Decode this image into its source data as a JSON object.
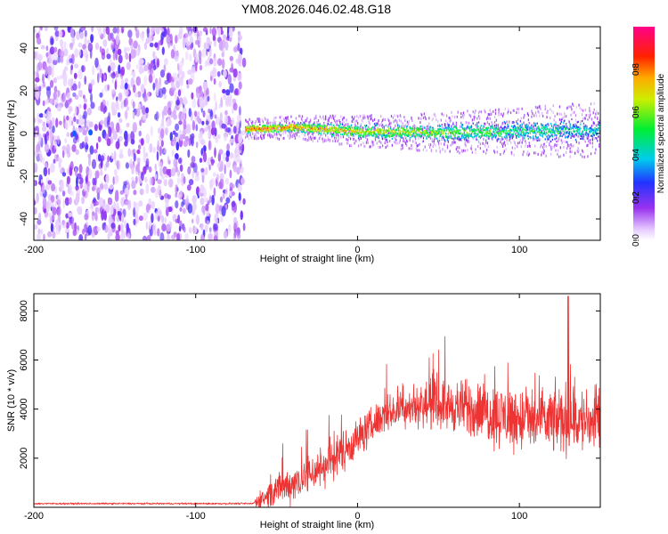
{
  "title": "YM08.2026.046.02.48.G18",
  "colors": {
    "line": "#ee3333",
    "axis": "#000000",
    "background": "#ffffff"
  },
  "chart_data": [
    {
      "type": "heatmap",
      "name": "spectrogram",
      "xlabel": "Height of straight line (km)",
      "ylabel": "Frequency (Hz)",
      "xlim": [
        -200,
        150
      ],
      "ylim": [
        -50,
        50
      ],
      "x_ticks": [
        -200,
        -100,
        0,
        100
      ],
      "x_tick_labels": [
        "-200",
        "-100",
        "0",
        "100"
      ],
      "y_ticks": [
        -40,
        -20,
        0,
        20,
        40
      ],
      "y_tick_labels": [
        "-40",
        "-20",
        "0",
        "20",
        "40"
      ],
      "noise_region_x": [
        -200,
        -70
      ],
      "signal_center_hz": [
        {
          "x": -70,
          "y": 2
        },
        {
          "x": -50,
          "y": 2.5
        },
        {
          "x": -40,
          "y": 3
        },
        {
          "x": -20,
          "y": 2
        },
        {
          "x": 0,
          "y": 1
        },
        {
          "x": 50,
          "y": 0.5
        },
        {
          "x": 100,
          "y": 1
        },
        {
          "x": 150,
          "y": 1.5
        }
      ],
      "colorbar": {
        "label": "Normalized spectral amplitude",
        "range": [
          0,
          1
        ],
        "ticks": [
          0.0,
          0.2,
          0.4,
          0.6,
          0.8
        ],
        "tick_labels": [
          "0.0",
          "0.2",
          "0.4",
          "0.6",
          "0.8"
        ],
        "colormap": "rainbow (white-violet-blue-cyan-green-yellow-red-magenta)"
      }
    },
    {
      "type": "line",
      "name": "snr",
      "xlabel": "Height of straight line (km)",
      "ylabel": "SNR (10 * v/v)",
      "xlim": [
        -200,
        150
      ],
      "ylim": [
        0,
        8700
      ],
      "x_ticks": [
        -200,
        -100,
        0,
        100
      ],
      "x_tick_labels": [
        "-200",
        "-100",
        "0",
        "100"
      ],
      "y_ticks": [
        2000,
        4000,
        6000,
        8000
      ],
      "y_tick_labels": [
        "2000",
        "4000",
        "6000",
        "8000"
      ],
      "envelope": [
        {
          "x": -200,
          "mean": 150,
          "spread": 40
        },
        {
          "x": -65,
          "mean": 150,
          "spread": 40
        },
        {
          "x": -58,
          "mean": 400,
          "spread": 600
        },
        {
          "x": -40,
          "mean": 1000,
          "spread": 900
        },
        {
          "x": -20,
          "mean": 1700,
          "spread": 1000
        },
        {
          "x": 0,
          "mean": 2800,
          "spread": 900
        },
        {
          "x": 15,
          "mean": 3700,
          "spread": 800
        },
        {
          "x": 30,
          "mean": 4100,
          "spread": 900
        },
        {
          "x": 50,
          "mean": 4200,
          "spread": 1100
        },
        {
          "x": 70,
          "mean": 4000,
          "spread": 1300
        },
        {
          "x": 90,
          "mean": 3700,
          "spread": 1500
        },
        {
          "x": 110,
          "mean": 3500,
          "spread": 1500
        },
        {
          "x": 130,
          "mean": 3600,
          "spread": 1600
        },
        {
          "x": 150,
          "mean": 3400,
          "spread": 1500
        }
      ],
      "peak": {
        "x": 130,
        "y": 8600
      }
    }
  ]
}
